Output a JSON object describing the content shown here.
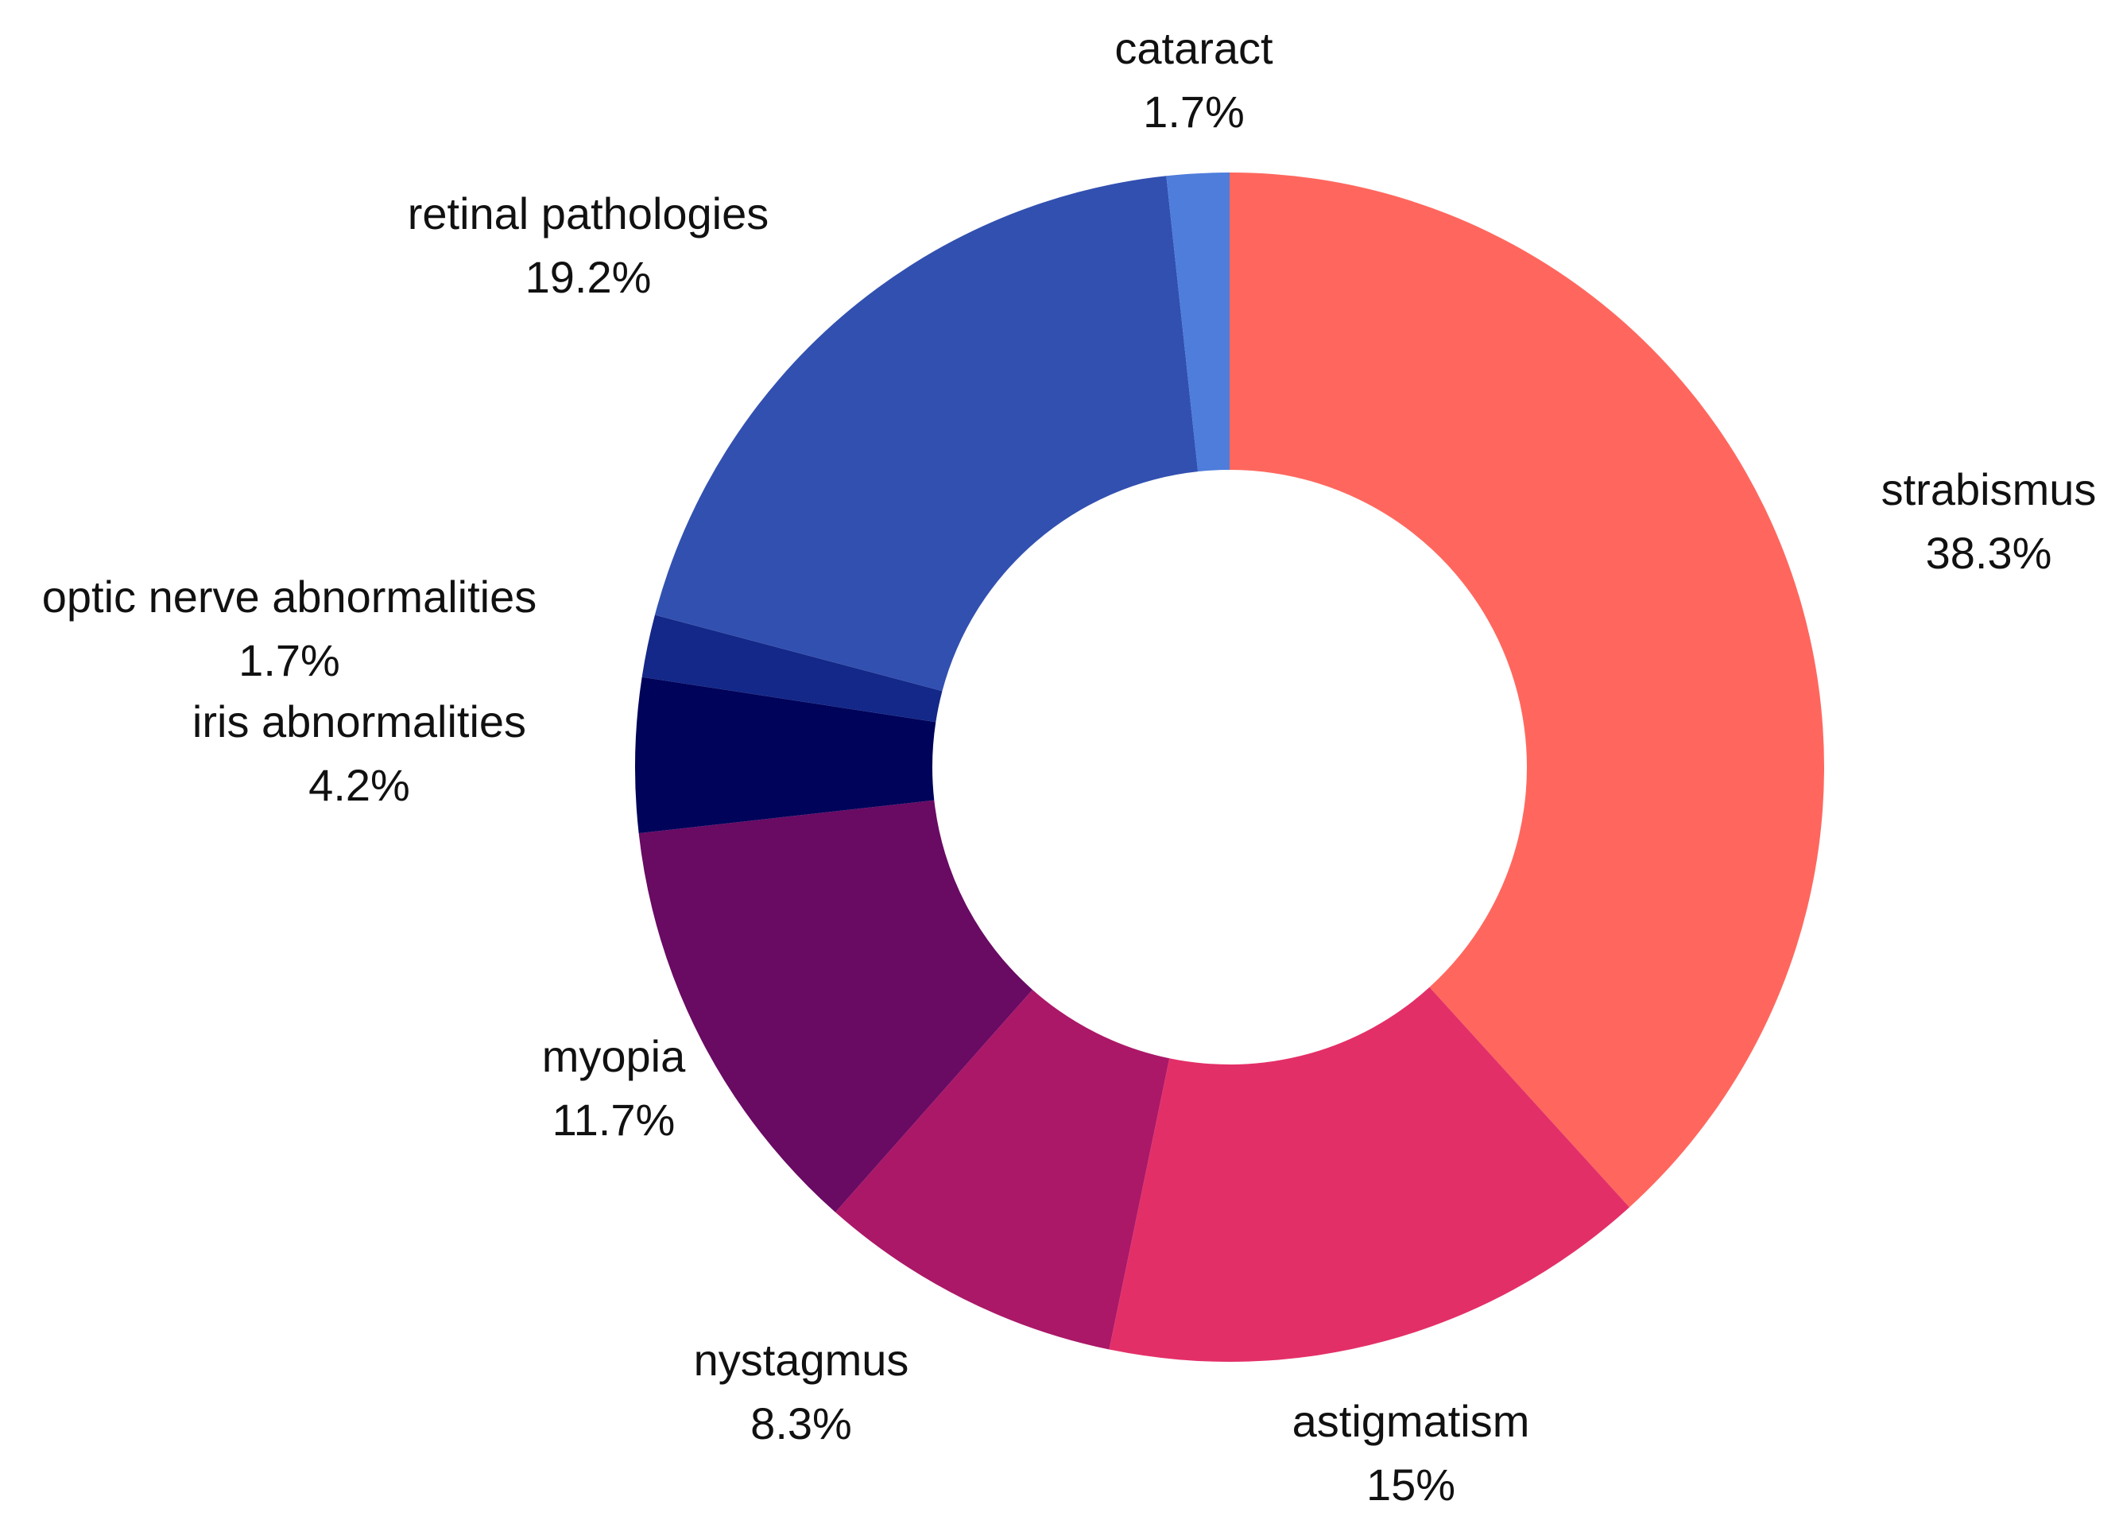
{
  "chart_data": {
    "type": "pie",
    "variant": "donut",
    "title": "",
    "legend": "none",
    "start_angle_deg": 0,
    "direction": "clockwise",
    "slices": [
      {
        "label": "strabismus",
        "value": 38.3,
        "value_label": "38.3%",
        "color": "#FF675E"
      },
      {
        "label": "astigmatism",
        "value": 15,
        "value_label": "15%",
        "color": "#E32F68"
      },
      {
        "label": "nystagmus",
        "value": 8.3,
        "value_label": "8.3%",
        "color": "#AB1868"
      },
      {
        "label": "myopia",
        "value": 11.7,
        "value_label": "11.7%",
        "color": "#690A63"
      },
      {
        "label": "iris abnormalities",
        "value": 4.2,
        "value_label": "4.2%",
        "color": "#00035A"
      },
      {
        "label": "optic nerve abnormalities",
        "value": 1.7,
        "value_label": "1.7%",
        "color": "#132888"
      },
      {
        "label": "retinal pathologies",
        "value": 19.2,
        "value_label": "19.2%",
        "color": "#3250B0"
      },
      {
        "label": "cataract",
        "value": 1.7,
        "value_label": "1.7%",
        "color": "#4E7DDB"
      }
    ]
  }
}
